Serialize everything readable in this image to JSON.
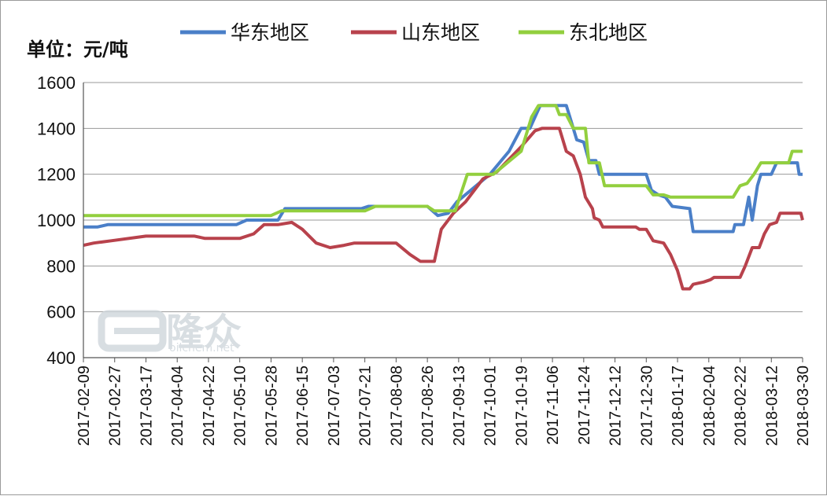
{
  "chart_data": {
    "type": "line",
    "unit_label": "单位：元/吨",
    "ylim": [
      400,
      1600
    ],
    "yticks": [
      400,
      600,
      800,
      1000,
      1200,
      1400,
      1600
    ],
    "x_start": "2017-02-09",
    "x_end": "2018-03-30",
    "xticks": [
      "2017-02-09",
      "2017-02-27",
      "2017-03-17",
      "2017-04-04",
      "2017-04-22",
      "2017-05-10",
      "2017-05-28",
      "2017-06-15",
      "2017-07-03",
      "2017-07-21",
      "2017-08-08",
      "2017-08-26",
      "2017-09-13",
      "2017-10-01",
      "2017-10-19",
      "2017-11-06",
      "2017-11-24",
      "2017-12-12",
      "2017-12-30",
      "2018-01-17",
      "2018-02-04",
      "2018-02-22",
      "2018-03-12",
      "2018-03-30"
    ],
    "grid": true,
    "legend_position": "top",
    "series": [
      {
        "name": "华东地区",
        "color": "#4a7fc8",
        "points": [
          [
            "2017-02-09",
            970
          ],
          [
            "2017-02-17",
            970
          ],
          [
            "2017-02-23",
            980
          ],
          [
            "2017-05-08",
            980
          ],
          [
            "2017-05-14",
            1000
          ],
          [
            "2017-06-01",
            1000
          ],
          [
            "2017-06-05",
            1050
          ],
          [
            "2017-07-19",
            1050
          ],
          [
            "2017-07-23",
            1060
          ],
          [
            "2017-08-26",
            1060
          ],
          [
            "2017-09-01",
            1020
          ],
          [
            "2017-09-07",
            1030
          ],
          [
            "2017-09-12",
            1080
          ],
          [
            "2017-09-20",
            1130
          ],
          [
            "2017-10-01",
            1200
          ],
          [
            "2017-10-12",
            1300
          ],
          [
            "2017-10-19",
            1400
          ],
          [
            "2017-10-24",
            1400
          ],
          [
            "2017-10-30",
            1500
          ],
          [
            "2017-11-14",
            1500
          ],
          [
            "2017-11-16",
            1450
          ],
          [
            "2017-11-20",
            1350
          ],
          [
            "2017-11-24",
            1340
          ],
          [
            "2017-11-27",
            1260
          ],
          [
            "2017-12-01",
            1260
          ],
          [
            "2017-12-03",
            1200
          ],
          [
            "2017-12-30",
            1200
          ],
          [
            "2018-01-02",
            1130
          ],
          [
            "2018-01-06",
            1110
          ],
          [
            "2018-01-10",
            1100
          ],
          [
            "2018-01-14",
            1060
          ],
          [
            "2018-01-24",
            1050
          ],
          [
            "2018-01-26",
            950
          ],
          [
            "2018-02-18",
            950
          ],
          [
            "2018-02-19",
            980
          ],
          [
            "2018-02-24",
            980
          ],
          [
            "2018-02-27",
            1100
          ],
          [
            "2018-03-01",
            1000
          ],
          [
            "2018-03-04",
            1150
          ],
          [
            "2018-03-06",
            1200
          ],
          [
            "2018-03-12",
            1200
          ],
          [
            "2018-03-15",
            1250
          ],
          [
            "2018-03-27",
            1250
          ],
          [
            "2018-03-28",
            1200
          ],
          [
            "2018-03-30",
            1200
          ]
        ]
      },
      {
        "name": "山东地区",
        "color": "#b8424c",
        "points": [
          [
            "2017-02-09",
            890
          ],
          [
            "2017-02-15",
            900
          ],
          [
            "2017-02-25",
            910
          ],
          [
            "2017-03-17",
            930
          ],
          [
            "2017-04-14",
            930
          ],
          [
            "2017-04-20",
            920
          ],
          [
            "2017-05-10",
            920
          ],
          [
            "2017-05-18",
            940
          ],
          [
            "2017-05-24",
            980
          ],
          [
            "2017-06-01",
            980
          ],
          [
            "2017-06-09",
            990
          ],
          [
            "2017-06-15",
            960
          ],
          [
            "2017-06-23",
            900
          ],
          [
            "2017-07-01",
            880
          ],
          [
            "2017-07-09",
            890
          ],
          [
            "2017-07-15",
            900
          ],
          [
            "2017-08-08",
            900
          ],
          [
            "2017-08-16",
            850
          ],
          [
            "2017-08-22",
            820
          ],
          [
            "2017-08-30",
            820
          ],
          [
            "2017-09-03",
            960
          ],
          [
            "2017-09-10",
            1030
          ],
          [
            "2017-09-17",
            1080
          ],
          [
            "2017-09-27",
            1180
          ],
          [
            "2017-10-05",
            1210
          ],
          [
            "2017-10-19",
            1320
          ],
          [
            "2017-10-27",
            1390
          ],
          [
            "2017-10-31",
            1400
          ],
          [
            "2017-11-10",
            1400
          ],
          [
            "2017-11-14",
            1300
          ],
          [
            "2017-11-18",
            1280
          ],
          [
            "2017-11-22",
            1200
          ],
          [
            "2017-11-25",
            1100
          ],
          [
            "2017-11-29",
            1050
          ],
          [
            "2017-11-30",
            1010
          ],
          [
            "2017-12-03",
            1000
          ],
          [
            "2017-12-05",
            970
          ],
          [
            "2017-12-24",
            970
          ],
          [
            "2017-12-26",
            960
          ],
          [
            "2017-12-30",
            960
          ],
          [
            "2018-01-03",
            910
          ],
          [
            "2018-01-09",
            900
          ],
          [
            "2018-01-13",
            850
          ],
          [
            "2018-01-17",
            780
          ],
          [
            "2018-01-20",
            700
          ],
          [
            "2018-01-24",
            700
          ],
          [
            "2018-01-26",
            720
          ],
          [
            "2018-02-01",
            730
          ],
          [
            "2018-02-05",
            740
          ],
          [
            "2018-02-07",
            750
          ],
          [
            "2018-02-22",
            750
          ],
          [
            "2018-02-25",
            800
          ],
          [
            "2018-03-01",
            880
          ],
          [
            "2018-03-05",
            880
          ],
          [
            "2018-03-08",
            940
          ],
          [
            "2018-03-11",
            980
          ],
          [
            "2018-03-15",
            990
          ],
          [
            "2018-03-17",
            1030
          ],
          [
            "2018-03-29",
            1030
          ],
          [
            "2018-03-30",
            1000
          ]
        ]
      },
      {
        "name": "东北地区",
        "color": "#92cf3e",
        "points": [
          [
            "2017-02-09",
            1020
          ],
          [
            "2017-05-28",
            1020
          ],
          [
            "2017-06-03",
            1040
          ],
          [
            "2017-07-21",
            1040
          ],
          [
            "2017-07-27",
            1060
          ],
          [
            "2017-08-26",
            1060
          ],
          [
            "2017-08-30",
            1040
          ],
          [
            "2017-09-11",
            1040
          ],
          [
            "2017-09-18",
            1200
          ],
          [
            "2017-10-03",
            1200
          ],
          [
            "2017-10-11",
            1250
          ],
          [
            "2017-10-19",
            1300
          ],
          [
            "2017-10-25",
            1450
          ],
          [
            "2017-10-29",
            1500
          ],
          [
            "2017-11-08",
            1500
          ],
          [
            "2017-11-10",
            1460
          ],
          [
            "2017-11-14",
            1460
          ],
          [
            "2017-11-18",
            1400
          ],
          [
            "2017-11-25",
            1400
          ],
          [
            "2017-11-27",
            1250
          ],
          [
            "2017-12-03",
            1250
          ],
          [
            "2017-12-06",
            1150
          ],
          [
            "2017-12-30",
            1150
          ],
          [
            "2018-01-03",
            1110
          ],
          [
            "2018-01-09",
            1110
          ],
          [
            "2018-01-13",
            1100
          ],
          [
            "2018-02-18",
            1100
          ],
          [
            "2018-02-22",
            1150
          ],
          [
            "2018-02-26",
            1160
          ],
          [
            "2018-03-02",
            1200
          ],
          [
            "2018-03-06",
            1250
          ],
          [
            "2018-03-22",
            1250
          ],
          [
            "2018-03-24",
            1300
          ],
          [
            "2018-03-30",
            1300
          ]
        ]
      }
    ]
  },
  "watermark": {
    "brand": "隆众",
    "site": "oilchem.net"
  }
}
